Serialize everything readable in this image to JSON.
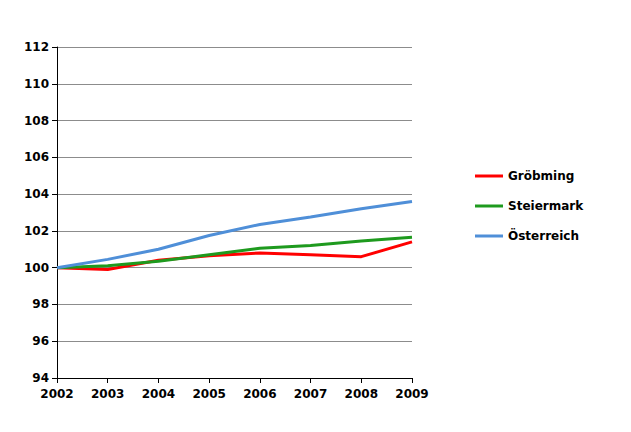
{
  "chart_data": {
    "type": "line",
    "categories": [
      "2002",
      "2003",
      "2004",
      "2005",
      "2006",
      "2007",
      "2008",
      "2009"
    ],
    "series": [
      {
        "name": "Gröbming",
        "color": "#ff0000",
        "values": [
          100,
          99.9,
          100.4,
          100.65,
          100.8,
          100.7,
          100.6,
          101.4
        ]
      },
      {
        "name": "Steiermark",
        "color": "#1e9a1e",
        "values": [
          100,
          100.1,
          100.35,
          100.7,
          101.05,
          101.2,
          101.45,
          101.65
        ]
      },
      {
        "name": "Österreich",
        "color": "#4f8fd8",
        "values": [
          100,
          100.45,
          101.0,
          101.75,
          102.35,
          102.75,
          103.2,
          103.6
        ]
      }
    ],
    "ylim": [
      94,
      112
    ],
    "yticks": [
      94,
      96,
      98,
      100,
      102,
      104,
      106,
      108,
      110,
      112
    ],
    "grid": true,
    "legend": "right"
  }
}
